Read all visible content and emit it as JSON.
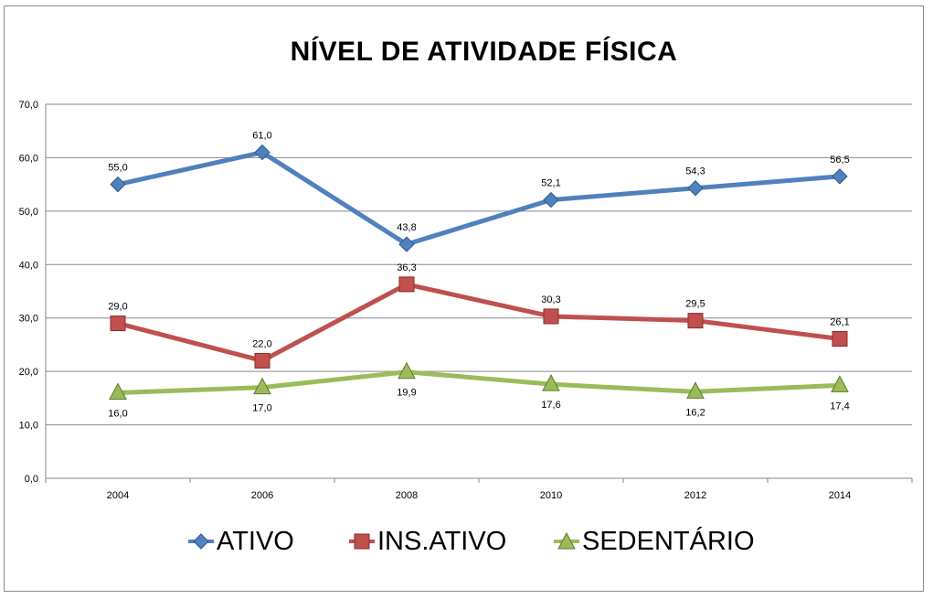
{
  "chart_data": {
    "type": "line",
    "title": "NÍVEL DE ATIVIDADE FÍSICA",
    "categories": [
      "2004",
      "2006",
      "2008",
      "2010",
      "2012",
      "2014"
    ],
    "ylim": [
      0,
      70
    ],
    "yticks": [
      "0,0",
      "10,0",
      "20,0",
      "30,0",
      "40,0",
      "50,0",
      "60,0",
      "70,0"
    ],
    "grid": true,
    "legend_position": "bottom",
    "series": [
      {
        "name": "ATIVO",
        "values": [
          55.0,
          61.0,
          43.8,
          52.1,
          54.3,
          56.5
        ],
        "labels": [
          "55,0",
          "61,0",
          "43,8",
          "52,1",
          "54,3",
          "56,5"
        ],
        "color": "#4f81bd",
        "marker": "diamond"
      },
      {
        "name": "INS.ATIVO",
        "values": [
          29.0,
          22.0,
          36.3,
          30.3,
          29.5,
          26.1
        ],
        "labels": [
          "29,0",
          "22,0",
          "36,3",
          "30,3",
          "29,5",
          "26,1"
        ],
        "color": "#c0504d",
        "marker": "square"
      },
      {
        "name": "SEDENTÁRIO",
        "values": [
          16.0,
          17.0,
          19.9,
          17.6,
          16.2,
          17.4
        ],
        "labels": [
          "16,0",
          "17,0",
          "19,9",
          "17,6",
          "16,2",
          "17,4"
        ],
        "color": "#9bbb59",
        "marker": "triangle"
      }
    ]
  }
}
